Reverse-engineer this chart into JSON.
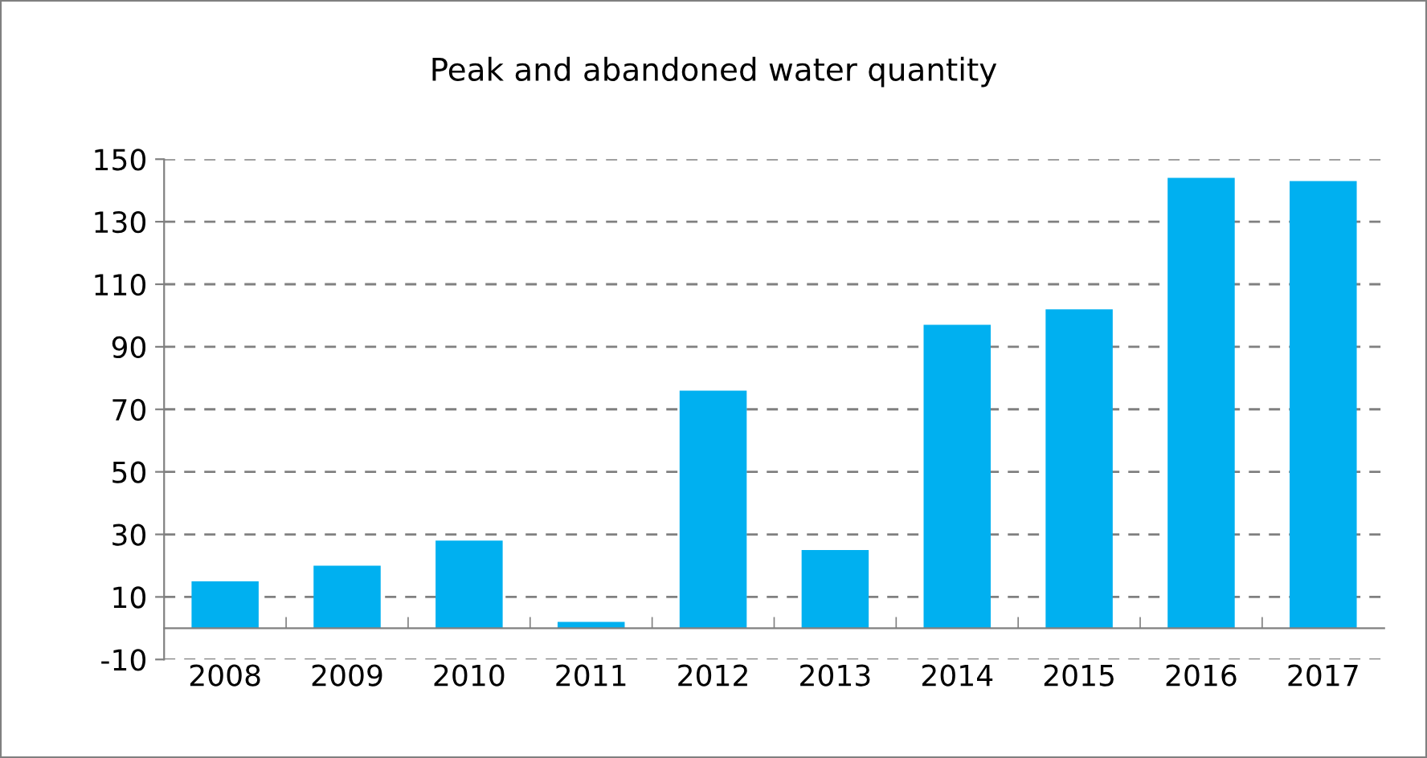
{
  "chart_data": {
    "type": "bar",
    "title": "Peak and abandoned water quantity",
    "categories": [
      "2008",
      "2009",
      "2010",
      "2011",
      "2012",
      "2013",
      "2014",
      "2015",
      "2016",
      "2017"
    ],
    "values": [
      15,
      20,
      28,
      2,
      76,
      25,
      97,
      102,
      144,
      143
    ],
    "color": "#00b0f0",
    "ylim": [
      -10,
      150
    ],
    "yticks": [
      -10,
      10,
      30,
      50,
      70,
      90,
      110,
      130,
      150
    ],
    "grid": "y",
    "legend": false
  }
}
